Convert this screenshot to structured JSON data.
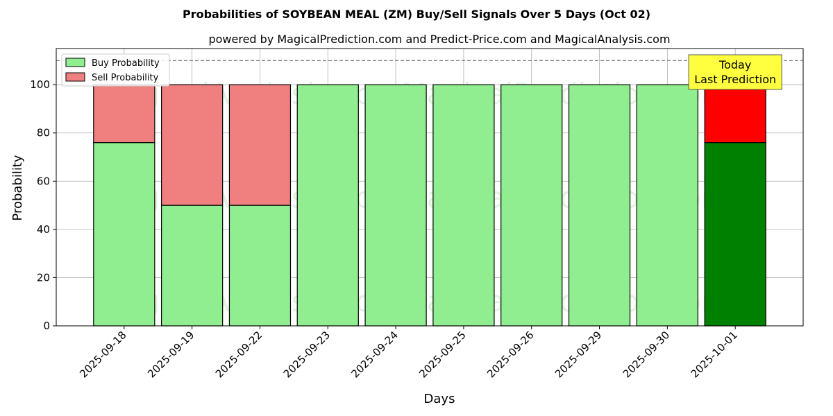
{
  "chart_data": {
    "type": "bar",
    "stacked": true,
    "title": "Probabilities of SOYBEAN MEAL (ZM) Buy/Sell Signals Over 5 Days (Oct 02)",
    "subtitle": "powered by MagicalPrediction.com and Predict-Price.com and MagicalAnalysis.com",
    "xlabel": "Days",
    "ylabel": "Probability",
    "ylim": [
      0,
      115
    ],
    "yticks": [
      0,
      20,
      40,
      60,
      80,
      100
    ],
    "categories": [
      "2025-09-18",
      "2025-09-19",
      "2025-09-22",
      "2025-09-23",
      "2025-09-24",
      "2025-09-25",
      "2025-09-26",
      "2025-09-29",
      "2025-09-30",
      "2025-10-01"
    ],
    "series": [
      {
        "name": "Buy Probability",
        "values": [
          76,
          50,
          50,
          100,
          100,
          100,
          100,
          100,
          100,
          76
        ],
        "color": "#90ee90",
        "highlight_color": "#008000"
      },
      {
        "name": "Sell Probability",
        "values": [
          24,
          50,
          50,
          0,
          0,
          0,
          0,
          0,
          0,
          24
        ],
        "color": "#f08080",
        "highlight_color": "#ff0000"
      }
    ],
    "highlight_index": 9,
    "reference_line": 110,
    "grid": true,
    "legend_position": "top-left",
    "annotation": {
      "lines": [
        "Today",
        "Last Prediction"
      ],
      "color": "#ffff40"
    },
    "watermarks": [
      "MagicalAnalysis.com",
      "MagicalPrediction.com"
    ]
  }
}
